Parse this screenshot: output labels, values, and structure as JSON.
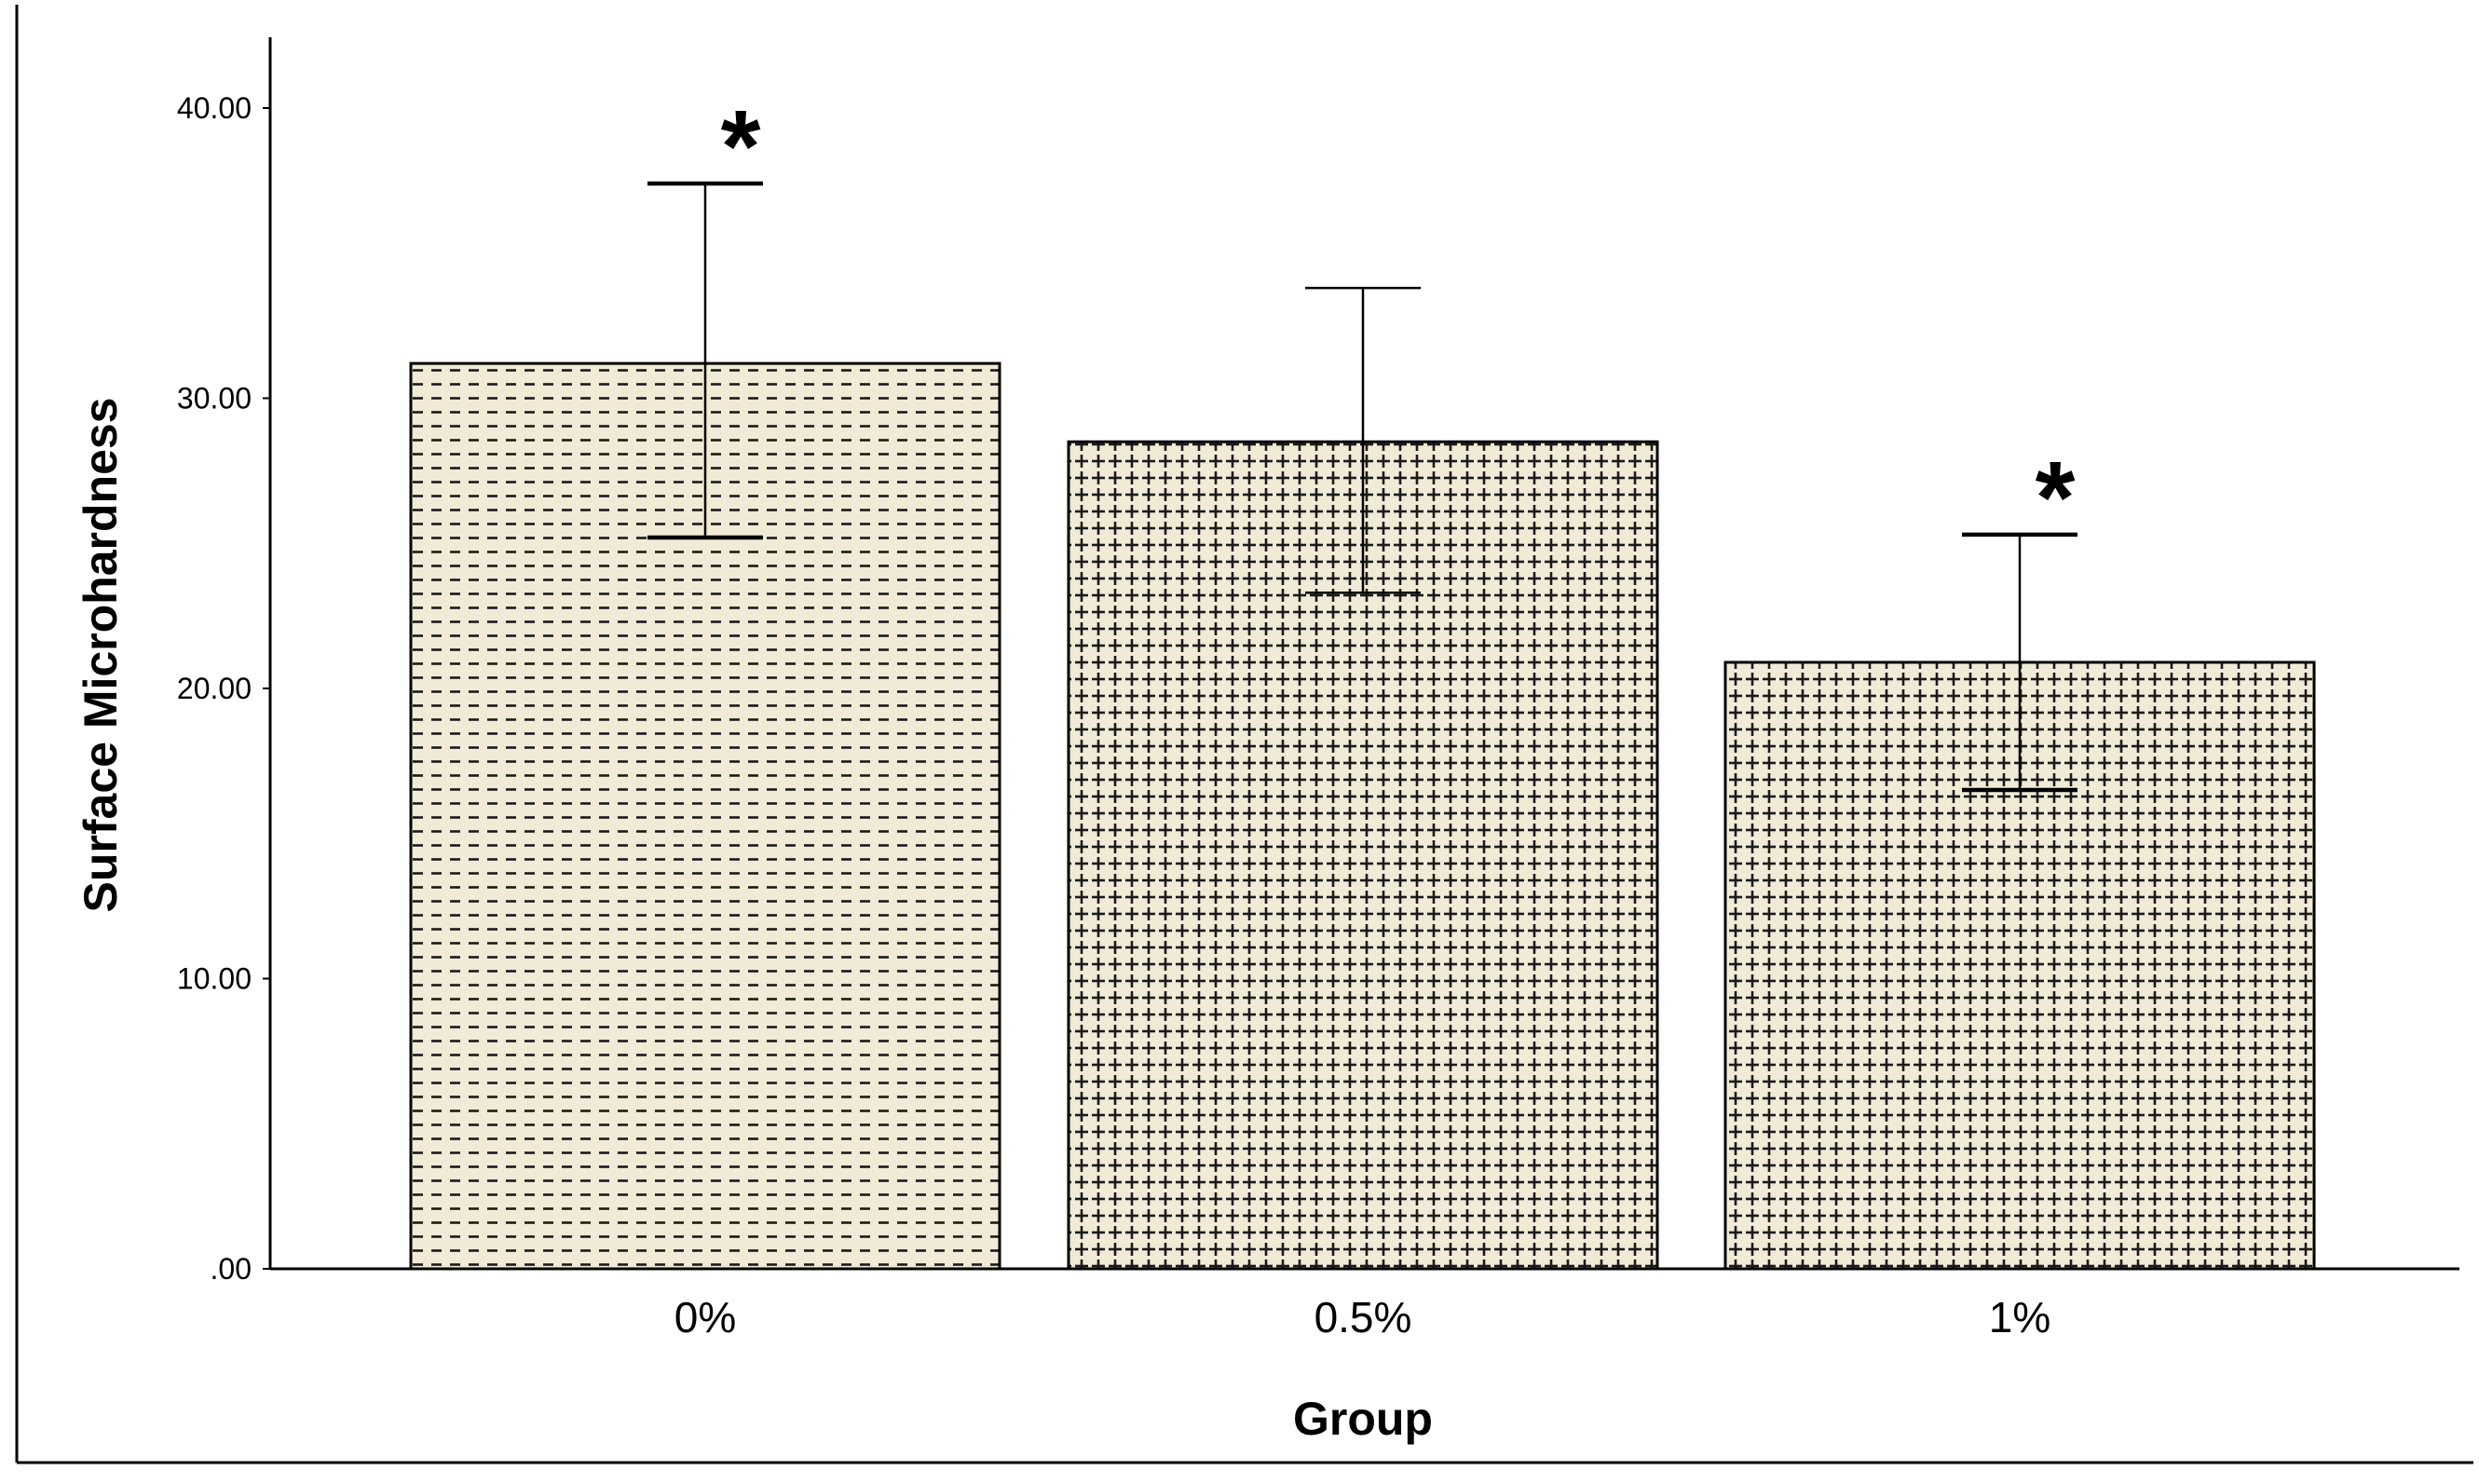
{
  "chart_data": {
    "type": "bar",
    "title": "",
    "xlabel": "Group",
    "ylabel": "Surface Microhardness",
    "categories": [
      "0%",
      "0.5%",
      "1%"
    ],
    "values": [
      31.2,
      28.5,
      20.9
    ],
    "error_bars": [
      {
        "lower": 25.2,
        "upper": 37.4
      },
      {
        "lower": 23.3,
        "upper": 33.8
      },
      {
        "lower": 16.5,
        "upper": 25.3
      }
    ],
    "significance": [
      "*",
      "",
      "*"
    ],
    "bar_patterns": [
      "dashes",
      "crosses",
      "crosses"
    ],
    "ylim": [
      0,
      42
    ],
    "yticks": [
      0,
      10,
      20,
      30,
      40
    ],
    "ytick_labels": [
      ".00",
      "10.00",
      "20.00",
      "30.00",
      "40.00"
    ],
    "grid": false,
    "colors": {
      "bar_fill": "#f1ead6",
      "pattern": "#1a1a1a",
      "axis": "#000000"
    }
  }
}
